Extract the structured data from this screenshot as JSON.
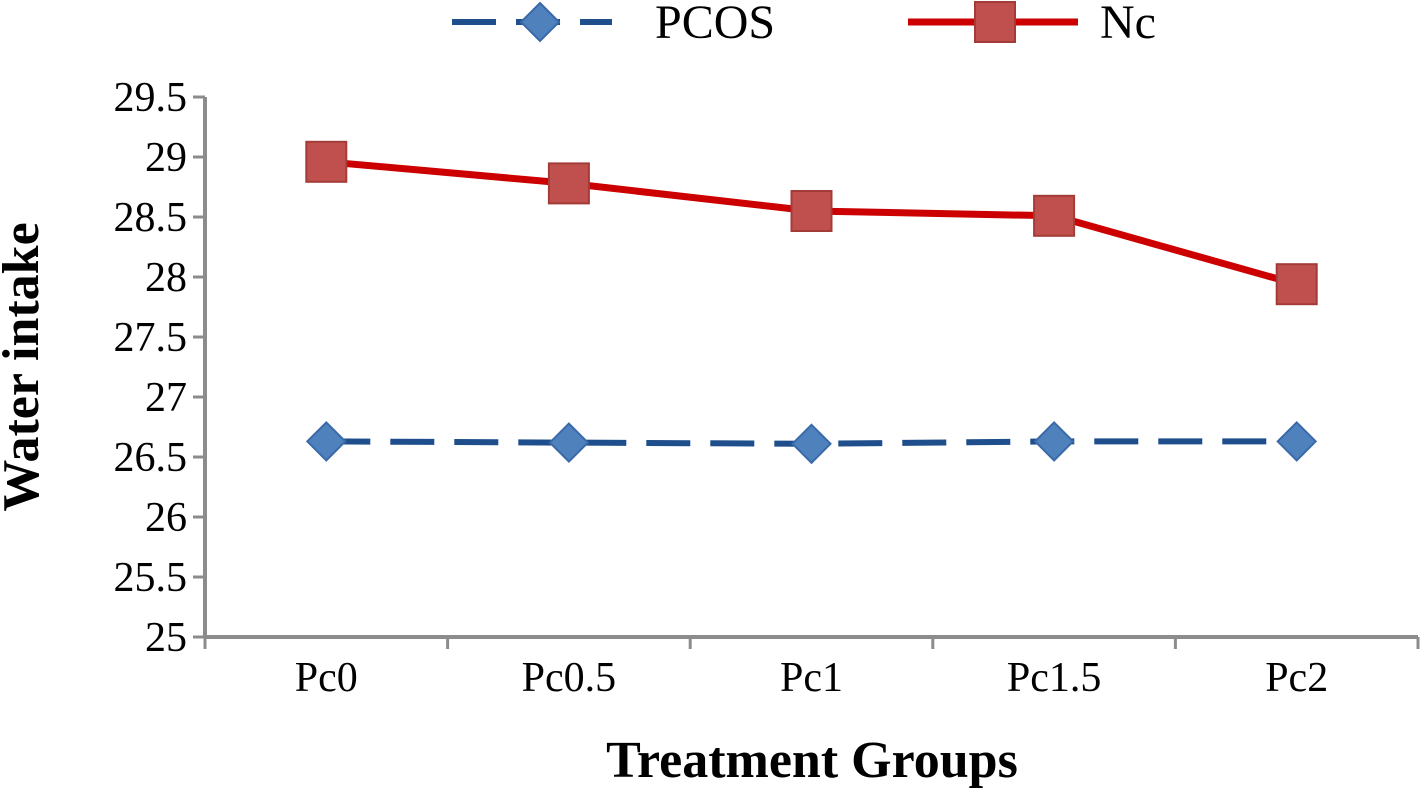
{
  "chart_data": {
    "type": "line",
    "title": "",
    "xlabel": "Treatment Groups",
    "ylabel": "Water  intake",
    "categories": [
      "Pc0",
      "Pc0.5",
      "Pc1",
      "Pc1.5",
      "Pc2"
    ],
    "ylim": [
      25,
      29.5
    ],
    "yticks": [
      "25",
      "25.5",
      "26",
      "26.5",
      "27",
      "27.5",
      "28",
      "28.5",
      "29",
      "29.5"
    ],
    "grid": false,
    "legend_position": "top",
    "series": [
      {
        "name": "PCOS",
        "values": [
          26.63,
          26.62,
          26.61,
          26.63,
          26.63
        ],
        "color": "#1f4e8c",
        "marker_color": "#4f81bd",
        "marker": "diamond",
        "line_style": "dashed"
      },
      {
        "name": "Nc",
        "values": [
          28.96,
          28.78,
          28.55,
          28.51,
          27.94
        ],
        "color": "#cc0000",
        "marker_color": "#c0504d",
        "marker": "square",
        "line_style": "solid"
      }
    ]
  }
}
